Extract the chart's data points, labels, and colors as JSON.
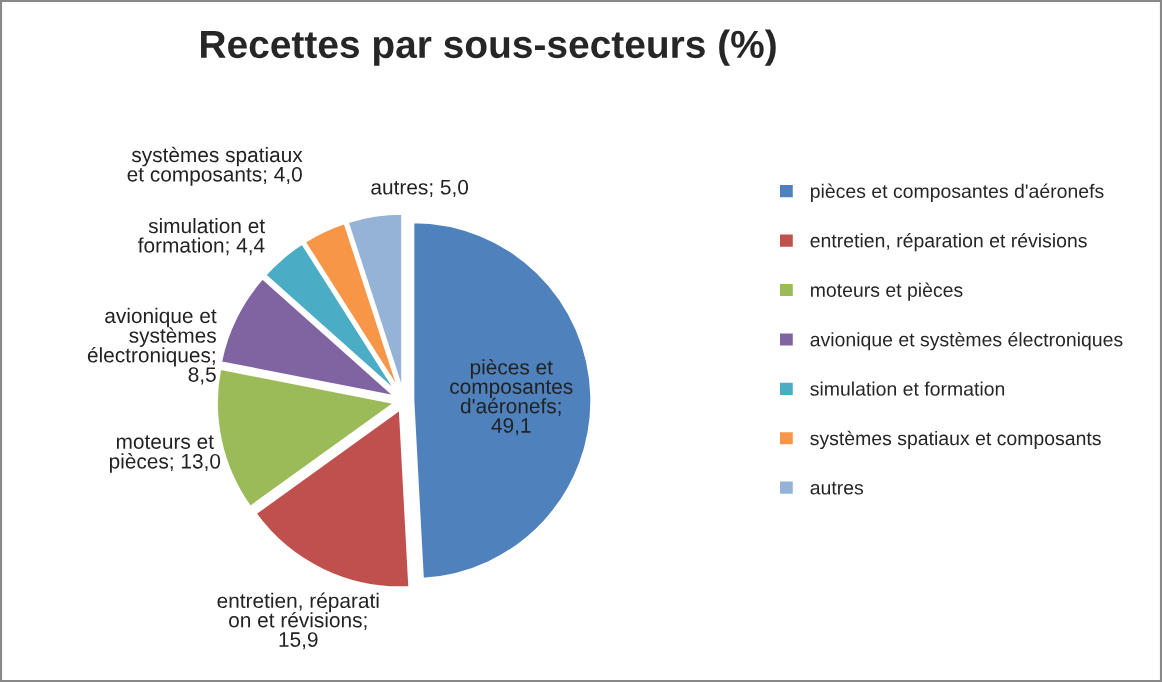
{
  "chart_data": {
    "type": "pie",
    "title": "Recettes par sous-secteurs (%)",
    "categories": [
      "pièces et composantes d'aéronefs",
      "entretien, réparation et révisions",
      "moteurs et pièces",
      "avionique et systèmes électroniques",
      "simulation et formation",
      "systèmes spatiaux et composants",
      "autres"
    ],
    "values": [
      49.1,
      15.9,
      13.0,
      8.5,
      4.4,
      4.0,
      5.0
    ],
    "colors": [
      "#4f81bd",
      "#c0504d",
      "#9bbb59",
      "#8064a2",
      "#4bacc6",
      "#f79646",
      "#95b3d7"
    ],
    "value_labels": [
      "pièces et\ncomposantes\nd'aéronefs;\n49,1",
      "entretien, réparati\non et révisions;\n15,9",
      "moteurs et\npièces; 13,0",
      "avionique et\nsystèmes\nélectroniques;\n8,5",
      "simulation et\nformation; 4,4",
      "systèmes spatiaux\net composants; 4,0",
      "autres; 5,0"
    ],
    "legend": "right"
  }
}
